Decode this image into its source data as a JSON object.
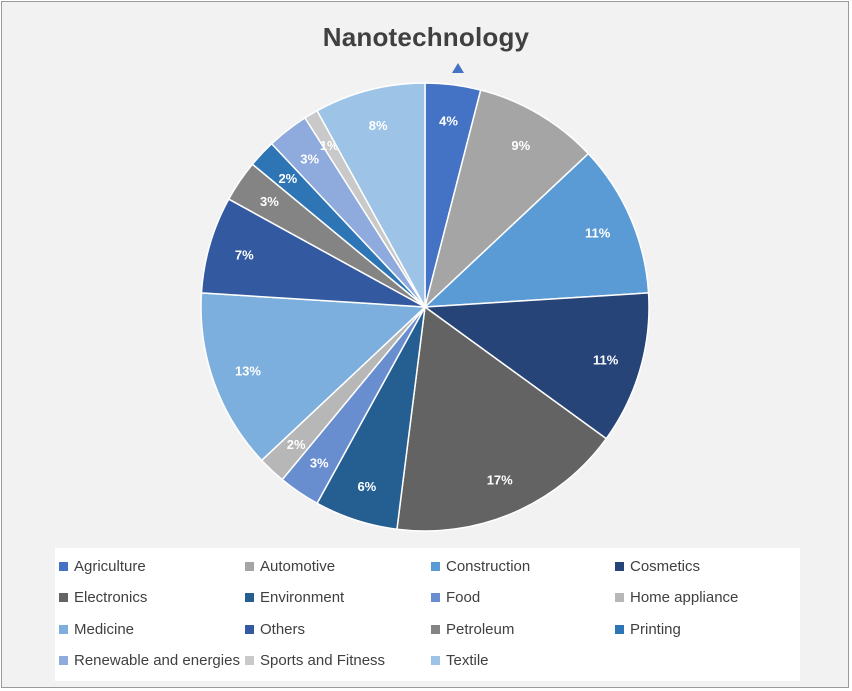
{
  "chart_data": {
    "type": "pie",
    "title": "Nanotechnology",
    "categories": [
      "Agriculture",
      "Automotive",
      "Construction",
      "Cosmetics",
      "Electronics",
      "Environment",
      "Food",
      "Home appliance",
      "Medicine",
      "Others",
      "Petroleum",
      "Printing",
      "Renewable and energies",
      "Sports and Fitness",
      "Textile"
    ],
    "values": [
      4,
      9,
      11,
      11,
      17,
      6,
      3,
      2,
      13,
      7,
      3,
      2,
      3,
      1,
      8
    ],
    "labels": [
      "4%",
      "9%",
      "11%",
      "11%",
      "17%",
      "6%",
      "3%",
      "2%",
      "13%",
      "7%",
      "3%",
      "2%",
      "3%",
      "1%",
      "8%"
    ],
    "colors": [
      "#4472c4",
      "#a5a5a5",
      "#5b9bd5",
      "#264478",
      "#636363",
      "#255e91",
      "#698ed0",
      "#b7b7b7",
      "#7cafdd",
      "#335aa1",
      "#848484",
      "#2e75b6",
      "#8faadc",
      "#c9c9c9",
      "#9dc3e6"
    ],
    "legend_position": "bottom"
  }
}
